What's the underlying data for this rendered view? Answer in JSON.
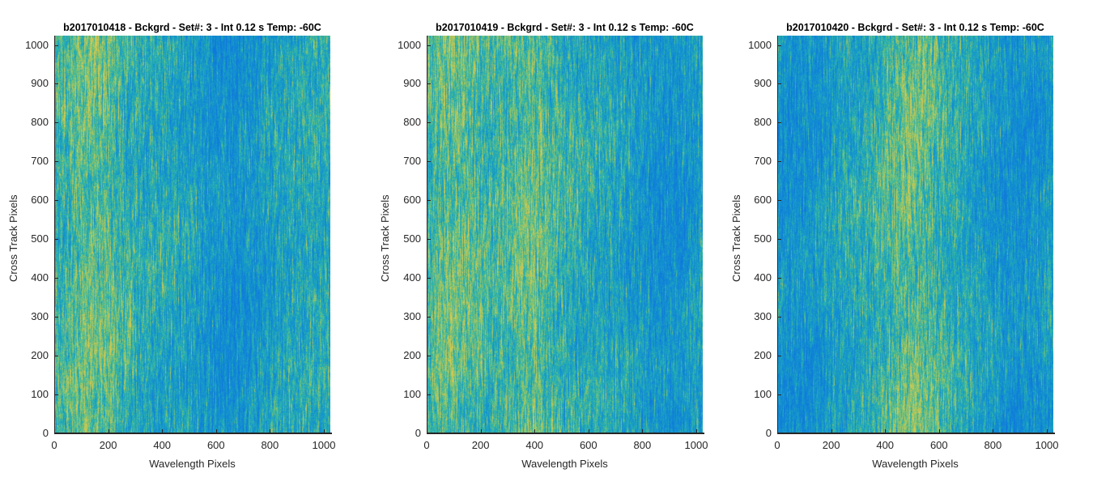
{
  "chart_data": [
    {
      "type": "heatmap",
      "title": "b2017010418 - Bckgrd - Set#: 3 - Int 0.12 s Temp: -60C",
      "xlabel": "Wavelength Pixels",
      "ylabel": "Cross Track Pixels",
      "xlim": [
        0,
        1024
      ],
      "ylim": [
        0,
        1024
      ],
      "xticks": [
        0,
        200,
        400,
        600,
        800,
        1000
      ],
      "yticks": [
        0,
        100,
        200,
        300,
        400,
        500,
        600,
        700,
        800,
        900,
        1000
      ],
      "colormap": "parula",
      "bright_band_centers": [
        140
      ],
      "dark_band_centers": [
        660
      ]
    },
    {
      "type": "heatmap",
      "title": "b2017010419 - Bckgrd - Set#: 3 - Int 0.12 s Temp: -60C",
      "xlabel": "Wavelength Pixels",
      "ylabel": "Cross Track Pixels",
      "xlim": [
        0,
        1024
      ],
      "ylim": [
        0,
        1024
      ],
      "xticks": [
        0,
        200,
        400,
        600,
        800,
        1000
      ],
      "yticks": [
        0,
        100,
        200,
        300,
        400,
        500,
        600,
        700,
        800,
        900,
        1000
      ],
      "colormap": "parula",
      "bright_band_centers": [
        100,
        380
      ],
      "dark_band_centers": [
        880
      ]
    },
    {
      "type": "heatmap",
      "title": "b2017010420 - Bckgrd - Set#: 3 - Int 0.12 s Temp: -60C",
      "xlabel": "Wavelength Pixels",
      "ylabel": "Cross Track Pixels",
      "xlim": [
        0,
        1024
      ],
      "ylim": [
        0,
        1024
      ],
      "xticks": [
        0,
        200,
        400,
        600,
        800,
        1000
      ],
      "yticks": [
        0,
        100,
        200,
        300,
        400,
        500,
        600,
        700,
        800,
        900,
        1000
      ],
      "colormap": "parula",
      "bright_band_centers": [
        500
      ],
      "dark_band_centers": [
        60,
        900
      ]
    }
  ],
  "colors": {
    "low": "#1a8fd4",
    "mid": "#2ab1b5",
    "high": "#b9c25a",
    "axis": "#262626"
  }
}
